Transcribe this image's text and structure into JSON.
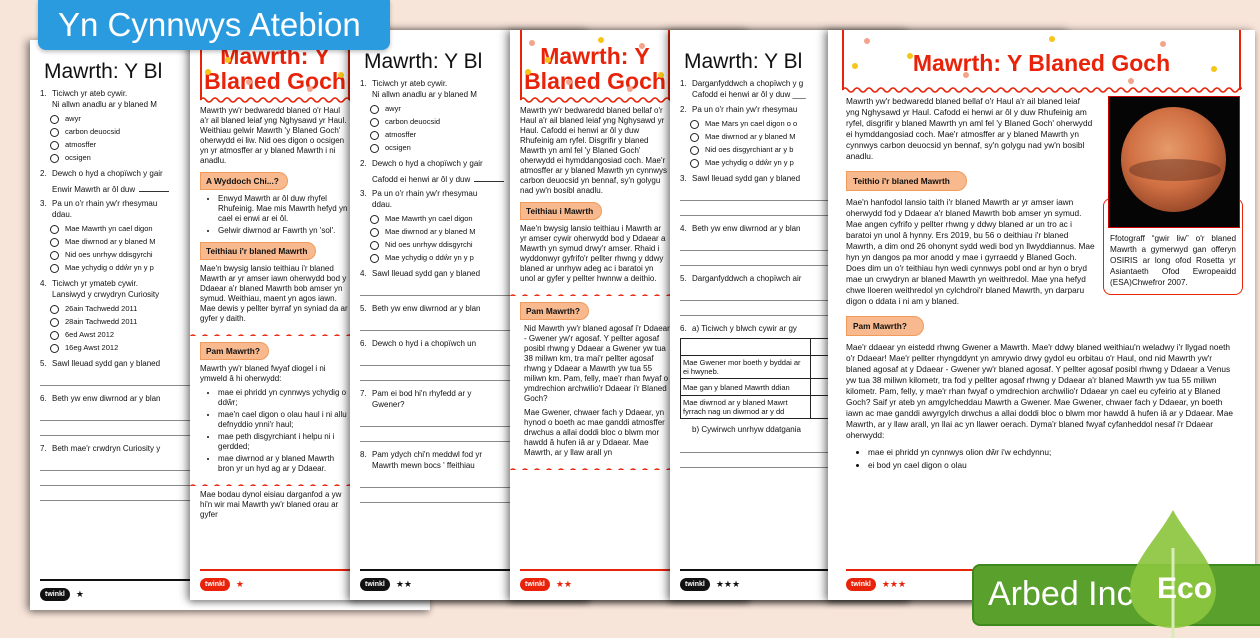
{
  "banner": {
    "text": "Yn Cynnwys Atebion",
    "color": "#2b9be0"
  },
  "badge": {
    "brand": "Arbed Inc",
    "tag": "Eco",
    "color": "#5aa02c",
    "icon": "leaf-icon"
  },
  "colors": {
    "accent_red": "#e8230a",
    "heading_pill": "#f7b98d",
    "background": "#f8e5da"
  },
  "pages": [
    {
      "footer": {
        "logo": "twinkl",
        "stars": "★",
        "style": "black"
      },
      "blocks": [
        {
          "type": "title",
          "text": "Mawrth: Y Bl"
        },
        {
          "type": "q",
          "num": "1.",
          "text": "Ticiwch yr ateb cywir.",
          "sub": "Ni allwn anadlu ar y blaned M"
        },
        {
          "type": "opts",
          "items": [
            "awyr",
            "carbon deuocsid",
            "atmosffer",
            "ocsigen"
          ]
        },
        {
          "type": "q",
          "num": "2.",
          "text": "Dewch o hyd a chopïwch y gair"
        },
        {
          "type": "fill",
          "text": "Enwir Mawrth ar ôl duw"
        },
        {
          "type": "q",
          "num": "3.",
          "text": "Pa un o'r rhain yw'r rhesymau",
          "sub": "ddau."
        },
        {
          "type": "opts",
          "items": [
            "Mae Mawrth yn cael digon",
            "Mae diwrnod ar y blaned M",
            "Nid oes unrhyw ddisgyrchi",
            "Mae ychydig o ddŵr yn y p"
          ]
        },
        {
          "type": "q",
          "num": "4.",
          "text": "Ticiwch yr ymateb cywir.",
          "sub": "Lansiwyd y crwydryn Curiosity"
        },
        {
          "type": "opts",
          "items": [
            "26ain Tachwedd 2011",
            "28ain Tachwedd 2011",
            "6ed Awst 2012",
            "16eg Awst 2012"
          ]
        },
        {
          "type": "q",
          "num": "5.",
          "text": "Sawl lleuad sydd gan y blaned"
        },
        {
          "type": "lines",
          "count": "1"
        },
        {
          "type": "q",
          "num": "6.",
          "text": "Beth yw enw diwrnod ar y blan"
        },
        {
          "type": "lines",
          "count": "2"
        },
        {
          "type": "q",
          "num": "7.",
          "text": "Beth mae'r crwdryn Curiosity y"
        },
        {
          "type": "lines",
          "count": "3"
        }
      ]
    },
    {
      "footer": {
        "logo": "twinkl",
        "stars": "★",
        "style": "red"
      },
      "blocks": [
        {
          "type": "fancy",
          "text": "Mawrth: Y Blaned Goch"
        },
        {
          "type": "p",
          "text": "Mawrth yw'r bedwaredd blaned o'r Haul a'r ail blaned leiaf yng Nghysawd yr Haul. Weithiau gelwir Mawrth 'y Blaned Goch' oherwydd ei liw. Nid oes digon o ocsigen yn yr atmosffer ar y blaned Mawrth i ni anadlu."
        },
        {
          "type": "h",
          "text": "A Wyddoch Chi...?"
        },
        {
          "type": "ul",
          "items": [
            "Enwyd Mawrth ar ôl duw rhyfel Rhufeinig. Mae mis Mawrth hefyd yn cael ei enwi ar ei ôl.",
            "Gelwir diwrnod ar Fawrth yn 'sol'."
          ]
        },
        {
          "type": "h",
          "text": "Teithiau i'r blaned Mawrth"
        },
        {
          "type": "p",
          "text": "Mae'n bwysig lansio teithiau i'r blaned Mawrth ar yr amser iawn oherwydd bod y Ddaear a'r blaned Mawrth bob amser yn symud. Weithiau, maent yn agos iawn. Mae dewis y pellter byrraf yn syniad da ar gyfer y daith."
        },
        {
          "type": "wave"
        },
        {
          "type": "h",
          "text": "Pam Mawrth?"
        },
        {
          "type": "p",
          "text": "Mawrth yw'r blaned fwyaf diogel i ni ymweld â hi oherwydd:"
        },
        {
          "type": "ul",
          "items": [
            "mae ei phridd yn cynnwys ychydig o ddŵr;",
            "mae'n cael digon o olau haul i ni allu defnyddio ynni'r haul;",
            "mae peth disgyrchiant i helpu ni i gerdded;",
            "mae diwrnod ar y blaned Mawrth bron yr un hyd ag ar y Ddaear."
          ]
        },
        {
          "type": "wave"
        },
        {
          "type": "p",
          "text": "Mae bodau dynol eisiau darganfod a yw hi'n wir mai Mawrth yw'r blaned orau ar gyfer"
        }
      ]
    },
    {
      "footer": {
        "logo": "twinkl",
        "stars": "★★",
        "style": "black"
      },
      "blocks": [
        {
          "type": "title",
          "text": "Mawrth: Y Bl"
        },
        {
          "type": "q",
          "num": "1.",
          "text": "Ticiwch yr ateb cywir.",
          "sub": "Ni allwn anadlu ar y blaned M"
        },
        {
          "type": "opts",
          "items": [
            "awyr",
            "carbon deuocsid",
            "atmosffer",
            "ocsigen"
          ]
        },
        {
          "type": "q",
          "num": "2.",
          "text": "Dewch o hyd a chopïwch y gair"
        },
        {
          "type": "fill",
          "text": "Cafodd ei henwi ar ôl y duw"
        },
        {
          "type": "q",
          "num": "3.",
          "text": "Pa un o'r rhain yw'r rhesymau",
          "sub": "ddau."
        },
        {
          "type": "opts",
          "items": [
            "Mae Mawrth yn cael digon",
            "Mae diwrnod ar y blaned M",
            "Nid oes unrhyw ddisgyrchi",
            "Mae ychydig o ddŵr yn y p"
          ]
        },
        {
          "type": "q",
          "num": "4.",
          "text": "Sawl lleuad sydd gan y blaned"
        },
        {
          "type": "lines",
          "count": "1"
        },
        {
          "type": "q",
          "num": "5.",
          "text": "Beth yw enw diwrnod ar y blan"
        },
        {
          "type": "lines",
          "count": "1"
        },
        {
          "type": "q",
          "num": "6.",
          "text": "Dewch o hyd i a chopïwch un"
        },
        {
          "type": "lines",
          "count": "2"
        },
        {
          "type": "q",
          "num": "7.",
          "text": "Pam ei bod hi'n rhyfedd ar y",
          "sub": "Gwener?"
        },
        {
          "type": "lines",
          "count": "2"
        },
        {
          "type": "q",
          "num": "8.",
          "text": "Pam ydych chi'n meddwl fod yr",
          "sub": "Mawrth mewn bocs ' ffeithiau"
        },
        {
          "type": "lines",
          "count": "2"
        }
      ]
    },
    {
      "footer": {
        "logo": "twinkl",
        "stars": "★★",
        "style": "red"
      },
      "blocks": [
        {
          "type": "fancy",
          "text": "Mawrth: Y Blaned Goch"
        },
        {
          "type": "p",
          "text": "Mawrth yw'r bedwaredd blaned bellaf o'r Haul a'r ail blaned leiaf yng Nghysawd yr Haul. Cafodd ei henwi ar ôl y duw Rhufeinig am ryfel. Disgrifir y blaned Mawrth yn aml fel 'y Blaned Goch' oherwydd ei hymddangosiad coch. Mae'r atmosffer ar y blaned Mawrth yn cynnwys carbon deuocsid yn bennaf, sy'n golygu nad yw'n bosibl anadlu."
        },
        {
          "type": "h",
          "text": "Teithiau i Mawrth"
        },
        {
          "type": "p",
          "text": "Mae'n bwysig lansio teithiau i Mawrth ar yr amser cywir oherwydd bod y Ddaear a Mawrth yn symud drwy'r amser. Rhaid i wyddonwyr gyfrifo'r pellter rhwng y ddwy blaned ar unrhyw adeg ac i baratoi yn unol ar gyfer y pellter hwnnw a deithio."
        },
        {
          "type": "wave"
        },
        {
          "type": "h",
          "text": "Pam Mawrth?"
        },
        {
          "type": "pn",
          "text": "Nid Mawrth yw'r blaned agosaf i'r Ddaear - Gwener yw'r agosaf. Y pellter agosaf posibl rhwng y Ddaear a Gwener yw tua 38 miliwn km, tra mai'r pellter agosaf rhwng y Ddaear a Mawrth yw tua 55 miliwn km. Pam, felly, mae'r rhan fwyaf o ymdrechion archwilio'r Ddaear i'r Blaned Goch?"
        },
        {
          "type": "pn",
          "text": "Mae Gwener, chwaer fach y Ddaear, yn hynod o boeth ac mae ganddi atmosffer drwchus a allai doddi bloc o blwm mor hawdd â hufen iâ ar y Ddaear. Mae Mawrth, ar y llaw arall yn"
        },
        {
          "type": "wave"
        }
      ]
    },
    {
      "footer": {
        "logo": "twinkl",
        "stars": "★★★",
        "style": "black"
      },
      "blocks": [
        {
          "type": "title",
          "text": "Mawrth: Y Bl"
        },
        {
          "type": "q",
          "num": "1.",
          "text": "Darganfyddwch a chopïwch y g",
          "sub": "Cafodd ei henwi ar ôl y duw ___"
        },
        {
          "type": "q",
          "num": "2.",
          "text": "Pa un o'r rhain yw'r rhesymau"
        },
        {
          "type": "opts",
          "items": [
            "Mae Mars yn cael digon o o",
            "Mae diwrnod ar y blaned M",
            "Nid oes disgyrchiant ar y b",
            "Mae ychydig o ddŵr yn y p"
          ]
        },
        {
          "type": "q",
          "num": "3.",
          "text": "Sawl lleuad sydd gan y blaned"
        },
        {
          "type": "lines",
          "count": "2"
        },
        {
          "type": "q",
          "num": "4.",
          "text": "Beth yw enw diwrnod ar y blan"
        },
        {
          "type": "lines",
          "count": "2"
        },
        {
          "type": "q",
          "num": "5.",
          "text": "Darganfyddwch a chopïwch air"
        },
        {
          "type": "lines",
          "count": "2"
        },
        {
          "type": "q",
          "num": "6.",
          "text": "a) Ticiwch y blwch cywir ar gy"
        },
        {
          "type": "table",
          "rows": [
            "",
            "Mae Gwener mor boeth y byddai ar ei hwyneb.",
            "Mae gan y blaned Mawrth ddian",
            "Mae diwrnod ar y blaned Mawrt fyrrach nag un diwrnod ar y dd"
          ]
        },
        {
          "type": "fill2",
          "text": "b) Cywirwch unrhyw ddatganiа"
        },
        {
          "type": "lines",
          "count": "2"
        }
      ]
    },
    {
      "footer": {
        "logo": "twinkl",
        "stars": "★★★",
        "style": "red"
      },
      "blocks": [
        {
          "type": "fancy",
          "text": "Mawrth: Y Blaned Goch"
        },
        {
          "type": "figure",
          "caption": "Ffotograff “gwir liw” o'r blaned Mawrth a gymerwyd gan offeryn OSIRIS ar long ofod Rosetta yr Asiantaeth Ofod Ewropeaidd (ESA)Chwefror 2007."
        },
        {
          "type": "p",
          "text": "Mawrth yw'r bedwaredd blaned bellaf o'r Haul a'r ail blaned leiaf yng Nghysawd yr Haul. Cafodd ei henwi ar ôl y duw Rhufeinig am ryfel, disgrifir y blaned Mawrth yn aml fel 'y Blaned Goch' oherwydd ei hymddangosiad coch. Mae'r atmosffer ar y blaned Mawrth yn cynnwys carbon deuocsid yn bennaf, sy'n golygu nad yw'n bosibl anadlu."
        },
        {
          "type": "h",
          "text": "Teithio i'r blaned Mawrth"
        },
        {
          "type": "p",
          "text": "Mae'n hanfodol lansio taith i'r blaned Mawrth ar yr amser iawn oherwydd fod y Ddaear a'r blaned Mawrth bob amser yn symud. Mae angen cyfrifo y pellter rhwng y ddwy blaned ar un tro ac i baratoi yn unol â hynny. Ers 2019, bu 56 o deithiau i'r blaned Mawrth, a dim ond 26 ohonynt sydd wedi bod yn llwyddiannus. Mae hyn yn dangos pa mor anodd y mae i gyrraedd y Blaned Goch. Does dim un o'r teithiau hyn wedi cynnwys pobl ond ar hyn o bryd mae un crwydryn ar blaned Mawrth yn weithredol. Mae yna hefyd chwe lloeren weithredol yn cylchdroi'r blaned Mawrth, yn darparu digon o ddata i ni am y blaned."
        },
        {
          "type": "h",
          "text": "Pam Mawrth?"
        },
        {
          "type": "p",
          "text": "Mae'r ddaear yn eistedd rhwng Gwener a Mawrth. Mae'r ddwy blaned weithiau'n weladwy i'r llygad noeth o'r Ddaear! Mae'r pellter rhyngddynt yn amrywio drwy gydol eu orbitau o'r Haul, ond nid Mawrth yw'r blaned agosaf at y Ddaear - Gwener yw'r blaned agosaf. Y pellter agosaf posibl rhwng y Ddaear a Venus yw tua 38 miliwn kilometr, tra fod y pellter agosaf rhwng y Ddaear a'r blaned Mawrth yw tua 55 miliwn kilometr. Pam, felly, y mae'r rhan fwyaf o ymdrechion archwilio'r Ddaear yn cael eu cyfeirio at y Blaned Goch? Saif yr ateb yn amgylcheddau Mawrth a Gwener. Mae Gwener, chwaer fach y Ddaear, yn boeth iawn ac mae ganddi awyrgylch drwchus a allai doddi bloc o blwm mor hawdd â hufen iâ ar y Ddaear. Mae Mawrth, ar y llaw arall, yn llai ac yn llawer oerach. Dyma'r blaned fwyaf cyfanheddol nesaf i'r Ddaear oherwydd:"
        },
        {
          "type": "ul",
          "items": [
            "mae ei phridd yn cynnwys olion dŵr i'w echdynnu;",
            "ei bod yn cael digon o olau"
          ]
        }
      ]
    }
  ]
}
